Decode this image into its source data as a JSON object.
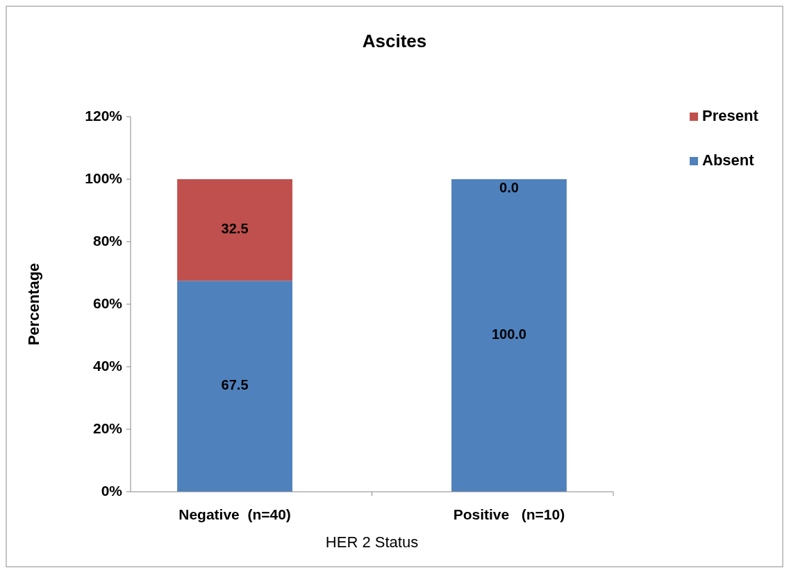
{
  "chart_data": {
    "type": "bar",
    "title": "Ascites",
    "xlabel": "HER 2 Status",
    "ylabel": "Percentage",
    "categories": [
      "Negative  (n=40)",
      "Positive   (n=10)"
    ],
    "stacked": true,
    "series": [
      {
        "name": "Absent",
        "color": "#4f81bd",
        "values": [
          67.5,
          100.0
        ],
        "value_labels": [
          "67.5",
          "100.0"
        ]
      },
      {
        "name": "Present",
        "color": "#c0504d",
        "values": [
          32.5,
          0.0
        ],
        "value_labels": [
          "32.5",
          "0.0"
        ]
      }
    ],
    "ylim": [
      0,
      120
    ],
    "yticks": [
      {
        "value": 0,
        "label": "0%"
      },
      {
        "value": 20,
        "label": "20%"
      },
      {
        "value": 40,
        "label": "40%"
      },
      {
        "value": 60,
        "label": "60%"
      },
      {
        "value": 80,
        "label": "80%"
      },
      {
        "value": 100,
        "label": "100%"
      },
      {
        "value": 120,
        "label": "120%"
      }
    ],
    "legend": "top right"
  }
}
